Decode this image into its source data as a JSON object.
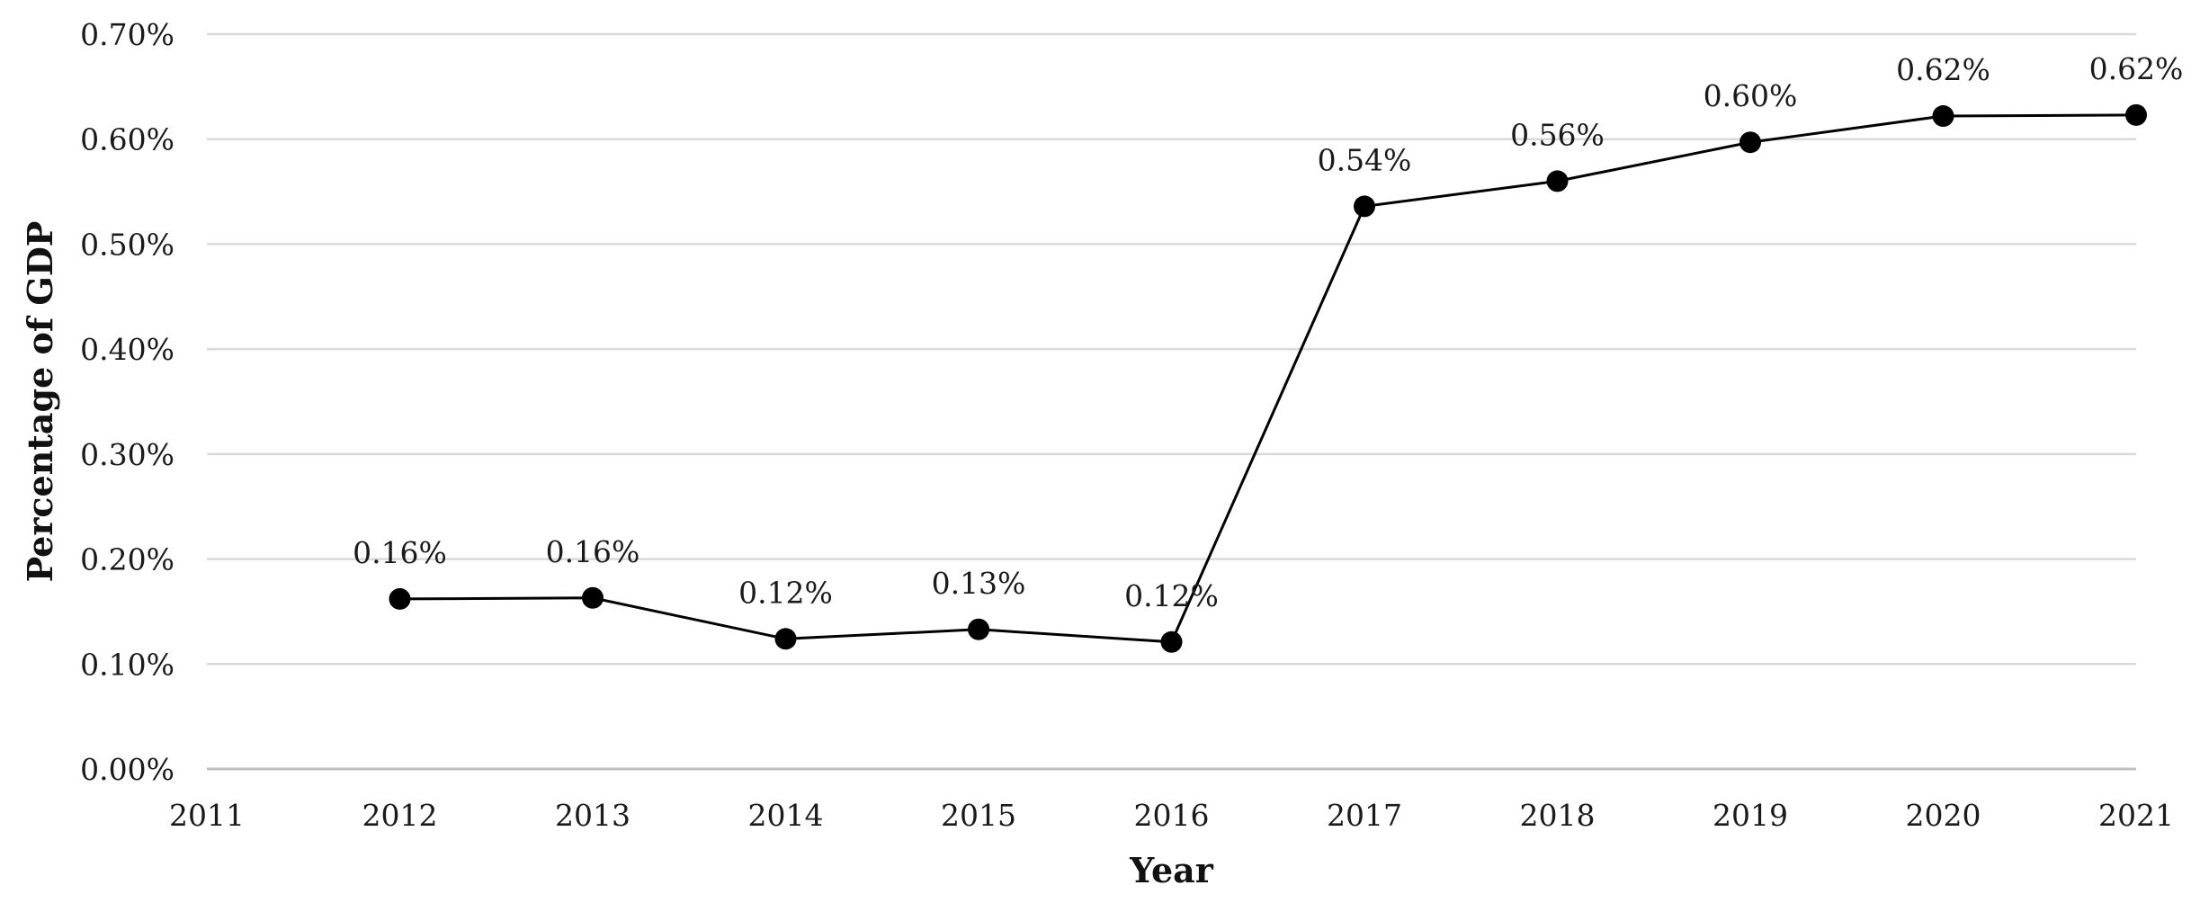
{
  "chart_data": {
    "type": "line",
    "title": "",
    "xlabel": "Year",
    "ylabel": "Percentage of GDP",
    "x": [
      2012,
      2013,
      2014,
      2015,
      2016,
      2017,
      2018,
      2019,
      2020,
      2021
    ],
    "values": [
      0.162,
      0.163,
      0.124,
      0.133,
      0.121,
      0.536,
      0.56,
      0.597,
      0.622,
      0.623
    ],
    "data_labels": [
      "0.16%",
      "0.16%",
      "0.12%",
      "0.13%",
      "0.12%",
      "0.54%",
      "0.56%",
      "0.60%",
      "0.62%",
      "0.62%"
    ],
    "xlim": [
      2011,
      2021
    ],
    "ylim": [
      0,
      0.7
    ],
    "x_ticks": [
      "2011",
      "2012",
      "2013",
      "2014",
      "2015",
      "2016",
      "2017",
      "2018",
      "2019",
      "2020",
      "2021"
    ],
    "y_ticks": [
      "0.00%",
      "0.10%",
      "0.20%",
      "0.30%",
      "0.40%",
      "0.50%",
      "0.60%",
      "0.70%"
    ],
    "grid": "horizontal",
    "legend": "none",
    "colors": {
      "line": "#000000",
      "marker": "#000000",
      "grid": "#d9d9d9",
      "text": "#1a1a1a"
    }
  }
}
